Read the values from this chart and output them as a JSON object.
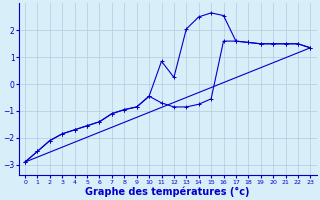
{
  "background_color": "#d8eef8",
  "grid_color": "#b0cce0",
  "line_color": "#0000cc",
  "xlabel": "Graphe des températures (°c)",
  "xlabel_fontsize": 7,
  "yticks": [
    -3,
    -2,
    -1,
    0,
    1,
    2
  ],
  "xticks": [
    0,
    1,
    2,
    3,
    4,
    5,
    6,
    7,
    8,
    9,
    10,
    11,
    12,
    13,
    14,
    15,
    16,
    17,
    18,
    19,
    20,
    21,
    22,
    23
  ],
  "xlim": [
    -0.5,
    23.5
  ],
  "ylim": [
    -3.4,
    3.0
  ],
  "line1_x": [
    0,
    1,
    2,
    3,
    4,
    5,
    6,
    7,
    8,
    9,
    10,
    11,
    12,
    13,
    14,
    15,
    16,
    17,
    18,
    19,
    20,
    21,
    22,
    23
  ],
  "line1_y": [
    -2.9,
    -2.5,
    -2.1,
    -1.85,
    -1.7,
    -1.55,
    -1.4,
    -1.1,
    -0.95,
    -0.85,
    -0.45,
    0.85,
    0.25,
    2.05,
    2.5,
    2.65,
    2.55,
    1.6,
    1.55,
    1.5,
    1.5,
    1.5,
    1.5,
    1.35
  ],
  "line2_x": [
    0,
    1,
    2,
    3,
    4,
    5,
    6,
    7,
    8,
    9,
    10,
    11,
    12,
    13,
    14,
    15,
    16,
    17,
    18,
    19,
    20,
    21,
    22,
    23
  ],
  "line2_y": [
    -2.9,
    -2.5,
    -2.1,
    -1.85,
    -1.7,
    -1.55,
    -1.4,
    -1.1,
    -0.95,
    -0.85,
    -0.45,
    -0.7,
    -0.85,
    -0.85,
    -0.75,
    -0.55,
    1.6,
    1.6,
    1.55,
    1.5,
    1.5,
    1.5,
    1.5,
    1.35
  ],
  "line3_x": [
    0,
    23
  ],
  "line3_y": [
    -2.9,
    1.35
  ]
}
